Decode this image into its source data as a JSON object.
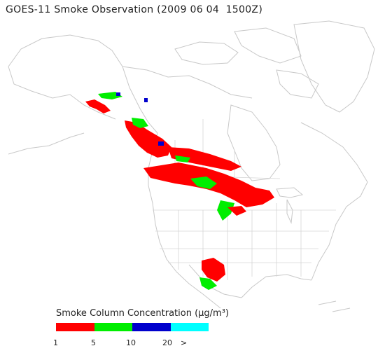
{
  "title": "GOES-11 Smoke Observation (2009 06 04  1500Z)",
  "legend": {
    "title": "Smoke Column Concentration (μg/m³)",
    "bins": [
      {
        "color": "#ff0000"
      },
      {
        "color": "#00ee00"
      },
      {
        "color": "#0000cc"
      },
      {
        "color": "#00ffff"
      }
    ],
    "ticks": [
      "1",
      "5",
      "10",
      "20",
      ">"
    ]
  },
  "colors": {
    "coastline": "#c8c8c8",
    "borders": "#d6d6d6",
    "background": "#ffffff"
  }
}
